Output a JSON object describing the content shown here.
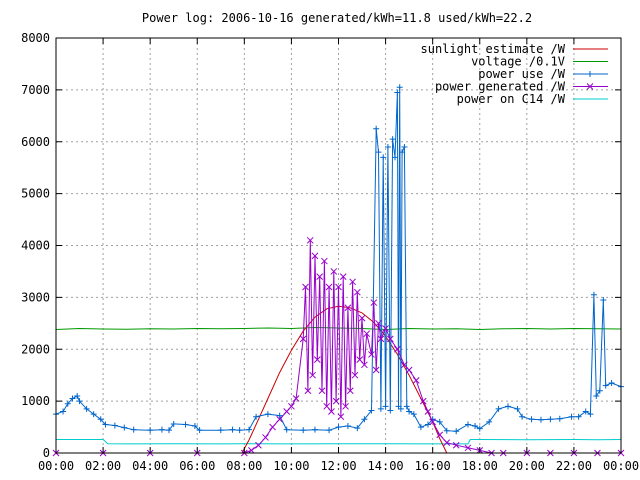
{
  "chart_data": {
    "type": "line",
    "title": "Power log: 2006-10-16 generated/kWh=11.8 used/kWh=22.2",
    "xlabel": "",
    "ylabel": "",
    "x_ticks": [
      "00:00",
      "02:00",
      "04:00",
      "06:00",
      "08:00",
      "10:00",
      "12:00",
      "14:00",
      "16:00",
      "18:00",
      "20:00",
      "22:00",
      "00:00"
    ],
    "y_ticks": [
      0,
      1000,
      2000,
      3000,
      4000,
      5000,
      6000,
      7000,
      8000
    ],
    "xlim_hours": [
      0,
      24
    ],
    "ylim": [
      0,
      8000
    ],
    "grid": true,
    "legend_position": "top-right",
    "series": [
      {
        "name": "sunlight estimate /W",
        "color": "#cc0000",
        "marker": "none",
        "points": [
          [
            7.9,
            0
          ],
          [
            8.2,
            250
          ],
          [
            8.6,
            650
          ],
          [
            9.0,
            1050
          ],
          [
            9.5,
            1550
          ],
          [
            10.0,
            1980
          ],
          [
            10.5,
            2350
          ],
          [
            11.0,
            2620
          ],
          [
            11.5,
            2780
          ],
          [
            12.0,
            2830
          ],
          [
            12.5,
            2800
          ],
          [
            13.0,
            2700
          ],
          [
            13.5,
            2520
          ],
          [
            14.0,
            2250
          ],
          [
            14.5,
            1900
          ],
          [
            15.0,
            1500
          ],
          [
            15.5,
            1050
          ],
          [
            16.0,
            600
          ],
          [
            16.3,
            280
          ],
          [
            16.6,
            0
          ]
        ]
      },
      {
        "name": "voltage /0.1V",
        "color": "#009900",
        "marker": "none",
        "points": [
          [
            0.0,
            2380
          ],
          [
            1.0,
            2400
          ],
          [
            2.0,
            2390
          ],
          [
            3.0,
            2385
          ],
          [
            4.0,
            2395
          ],
          [
            5.0,
            2390
          ],
          [
            6.0,
            2400
          ],
          [
            7.0,
            2395
          ],
          [
            8.0,
            2400
          ],
          [
            9.0,
            2410
          ],
          [
            10.0,
            2400
          ],
          [
            11.0,
            2420
          ],
          [
            12.0,
            2410
          ],
          [
            13.0,
            2400
          ],
          [
            14.0,
            2380
          ],
          [
            15.0,
            2400
          ],
          [
            16.0,
            2390
          ],
          [
            17.0,
            2395
          ],
          [
            18.0,
            2380
          ],
          [
            19.0,
            2395
          ],
          [
            20.0,
            2400
          ],
          [
            21.0,
            2390
          ],
          [
            22.0,
            2400
          ],
          [
            23.0,
            2395
          ],
          [
            24.0,
            2390
          ]
        ]
      },
      {
        "name": "power use /W",
        "color": "#0066cc",
        "marker": "plus",
        "points": [
          [
            0.0,
            750
          ],
          [
            0.3,
            800
          ],
          [
            0.5,
            950
          ],
          [
            0.7,
            1050
          ],
          [
            0.9,
            1100
          ],
          [
            1.0,
            1000
          ],
          [
            1.3,
            850
          ],
          [
            1.6,
            750
          ],
          [
            1.9,
            650
          ],
          [
            2.1,
            550
          ],
          [
            2.5,
            530
          ],
          [
            2.9,
            490
          ],
          [
            3.3,
            450
          ],
          [
            4.0,
            440
          ],
          [
            4.5,
            450
          ],
          [
            4.8,
            440
          ],
          [
            5.0,
            560
          ],
          [
            5.5,
            550
          ],
          [
            5.9,
            520
          ],
          [
            6.1,
            440
          ],
          [
            7.0,
            440
          ],
          [
            7.5,
            450
          ],
          [
            7.8,
            440
          ],
          [
            8.2,
            450
          ],
          [
            8.5,
            700
          ],
          [
            9.0,
            750
          ],
          [
            9.5,
            720
          ],
          [
            9.8,
            450
          ],
          [
            10.5,
            440
          ],
          [
            11.0,
            450
          ],
          [
            11.6,
            440
          ],
          [
            12.0,
            500
          ],
          [
            12.4,
            520
          ],
          [
            12.8,
            480
          ],
          [
            13.1,
            650
          ],
          [
            13.4,
            820
          ],
          [
            13.6,
            6250
          ],
          [
            13.7,
            5800
          ],
          [
            13.8,
            850
          ],
          [
            13.9,
            5700
          ],
          [
            14.0,
            900
          ],
          [
            14.1,
            5900
          ],
          [
            14.2,
            820
          ],
          [
            14.3,
            6050
          ],
          [
            14.4,
            5700
          ],
          [
            14.5,
            6950
          ],
          [
            14.55,
            900
          ],
          [
            14.6,
            7050
          ],
          [
            14.65,
            850
          ],
          [
            14.7,
            5800
          ],
          [
            14.8,
            5900
          ],
          [
            14.9,
            900
          ],
          [
            15.0,
            800
          ],
          [
            15.2,
            750
          ],
          [
            15.5,
            500
          ],
          [
            15.8,
            550
          ],
          [
            16.0,
            650
          ],
          [
            16.3,
            600
          ],
          [
            16.6,
            430
          ],
          [
            17.0,
            420
          ],
          [
            17.5,
            550
          ],
          [
            17.8,
            520
          ],
          [
            18.0,
            470
          ],
          [
            18.4,
            600
          ],
          [
            18.8,
            850
          ],
          [
            19.2,
            900
          ],
          [
            19.6,
            850
          ],
          [
            19.8,
            700
          ],
          [
            20.2,
            650
          ],
          [
            20.6,
            640
          ],
          [
            21.0,
            650
          ],
          [
            21.4,
            660
          ],
          [
            21.9,
            700
          ],
          [
            22.2,
            700
          ],
          [
            22.5,
            800
          ],
          [
            22.7,
            750
          ],
          [
            22.85,
            3050
          ],
          [
            22.95,
            1100
          ],
          [
            23.1,
            1200
          ],
          [
            23.25,
            2950
          ],
          [
            23.35,
            1300
          ],
          [
            23.6,
            1350
          ],
          [
            24.0,
            1280
          ]
        ]
      },
      {
        "name": "power generated /W",
        "color": "#9900cc",
        "marker": "cross",
        "points": [
          [
            0.0,
            0
          ],
          [
            2.0,
            0
          ],
          [
            4.0,
            0
          ],
          [
            6.0,
            0
          ],
          [
            8.0,
            0
          ],
          [
            8.3,
            50
          ],
          [
            8.6,
            150
          ],
          [
            8.9,
            300
          ],
          [
            9.2,
            500
          ],
          [
            9.5,
            650
          ],
          [
            9.8,
            800
          ],
          [
            10.0,
            900
          ],
          [
            10.2,
            1050
          ],
          [
            10.5,
            2200
          ],
          [
            10.6,
            3200
          ],
          [
            10.7,
            1200
          ],
          [
            10.8,
            4100
          ],
          [
            10.9,
            1500
          ],
          [
            11.0,
            3800
          ],
          [
            11.1,
            1800
          ],
          [
            11.2,
            3400
          ],
          [
            11.3,
            1200
          ],
          [
            11.4,
            3700
          ],
          [
            11.5,
            900
          ],
          [
            11.6,
            3200
          ],
          [
            11.7,
            800
          ],
          [
            11.8,
            3500
          ],
          [
            11.9,
            1000
          ],
          [
            12.0,
            3200
          ],
          [
            12.1,
            700
          ],
          [
            12.2,
            3400
          ],
          [
            12.3,
            900
          ],
          [
            12.4,
            2800
          ],
          [
            12.5,
            1200
          ],
          [
            12.6,
            3300
          ],
          [
            12.7,
            1500
          ],
          [
            12.8,
            3100
          ],
          [
            12.9,
            1800
          ],
          [
            13.0,
            2600
          ],
          [
            13.1,
            1700
          ],
          [
            13.2,
            2300
          ],
          [
            13.4,
            1900
          ],
          [
            13.5,
            2900
          ],
          [
            13.6,
            1600
          ],
          [
            13.7,
            2500
          ],
          [
            13.8,
            2200
          ],
          [
            14.0,
            2400
          ],
          [
            14.2,
            2200
          ],
          [
            14.5,
            2000
          ],
          [
            14.8,
            1700
          ],
          [
            15.0,
            1600
          ],
          [
            15.3,
            1400
          ],
          [
            15.6,
            1000
          ],
          [
            15.8,
            800
          ],
          [
            16.0,
            600
          ],
          [
            16.3,
            350
          ],
          [
            16.6,
            200
          ],
          [
            17.0,
            150
          ],
          [
            17.5,
            100
          ],
          [
            18.0,
            50
          ],
          [
            18.5,
            0
          ],
          [
            19.0,
            0
          ],
          [
            20.0,
            0
          ],
          [
            21.0,
            0
          ],
          [
            22.0,
            0
          ],
          [
            23.0,
            0
          ],
          [
            24.0,
            0
          ]
        ]
      },
      {
        "name": "power on C14 /W",
        "color": "#00cccc",
        "marker": "none",
        "points": [
          [
            0.0,
            260
          ],
          [
            2.0,
            260
          ],
          [
            2.2,
            180
          ],
          [
            3.0,
            175
          ],
          [
            5.0,
            180
          ],
          [
            7.0,
            175
          ],
          [
            8.0,
            180
          ],
          [
            10.0,
            175
          ],
          [
            12.0,
            180
          ],
          [
            14.0,
            180
          ],
          [
            16.0,
            175
          ],
          [
            17.5,
            175
          ],
          [
            17.6,
            260
          ],
          [
            18.0,
            260
          ],
          [
            20.0,
            255
          ],
          [
            22.0,
            260
          ],
          [
            23.0,
            255
          ],
          [
            24.0,
            260
          ]
        ]
      }
    ]
  }
}
